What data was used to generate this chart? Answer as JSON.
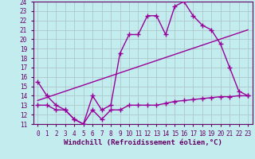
{
  "xlabel": "Windchill (Refroidissement éolien,°C)",
  "xlim": [
    -0.5,
    23.5
  ],
  "ylim": [
    11,
    24
  ],
  "xticks": [
    0,
    1,
    2,
    3,
    4,
    5,
    6,
    7,
    8,
    9,
    10,
    11,
    12,
    13,
    14,
    15,
    16,
    17,
    18,
    19,
    20,
    21,
    22,
    23
  ],
  "yticks": [
    11,
    12,
    13,
    14,
    15,
    16,
    17,
    18,
    19,
    20,
    21,
    22,
    23,
    24
  ],
  "background_color": "#c2ecee",
  "grid_color": "#b0c8ca",
  "line_color": "#990099",
  "line1_x": [
    0,
    1,
    2,
    3,
    4,
    5,
    6,
    7,
    8,
    9,
    10,
    11,
    12,
    13,
    14,
    15,
    16,
    17,
    18,
    19,
    20,
    21,
    22,
    23
  ],
  "line1_y": [
    15.5,
    14.0,
    13.0,
    12.5,
    11.5,
    11.0,
    14.0,
    12.5,
    13.0,
    18.5,
    20.5,
    20.5,
    22.5,
    22.5,
    20.5,
    23.5,
    24.0,
    22.5,
    21.5,
    21.0,
    19.5,
    17.0,
    14.5,
    14.0
  ],
  "line2_x": [
    0,
    1,
    2,
    3,
    4,
    5,
    6,
    7,
    8,
    9,
    10,
    11,
    12,
    13,
    14,
    15,
    16,
    17,
    18,
    19,
    20,
    21,
    22,
    23
  ],
  "line2_y": [
    13.0,
    13.0,
    12.5,
    12.5,
    11.5,
    11.0,
    12.5,
    11.5,
    12.5,
    12.5,
    13.0,
    13.0,
    13.0,
    13.0,
    13.2,
    13.4,
    13.5,
    13.6,
    13.7,
    13.8,
    13.9,
    13.9,
    14.0,
    14.0
  ],
  "line3_x": [
    0,
    23
  ],
  "line3_y": [
    13.5,
    21.0
  ],
  "marker": "+",
  "markersize": 5,
  "linewidth": 1.0,
  "tick_fontsize": 5.5,
  "label_fontsize": 6.5
}
